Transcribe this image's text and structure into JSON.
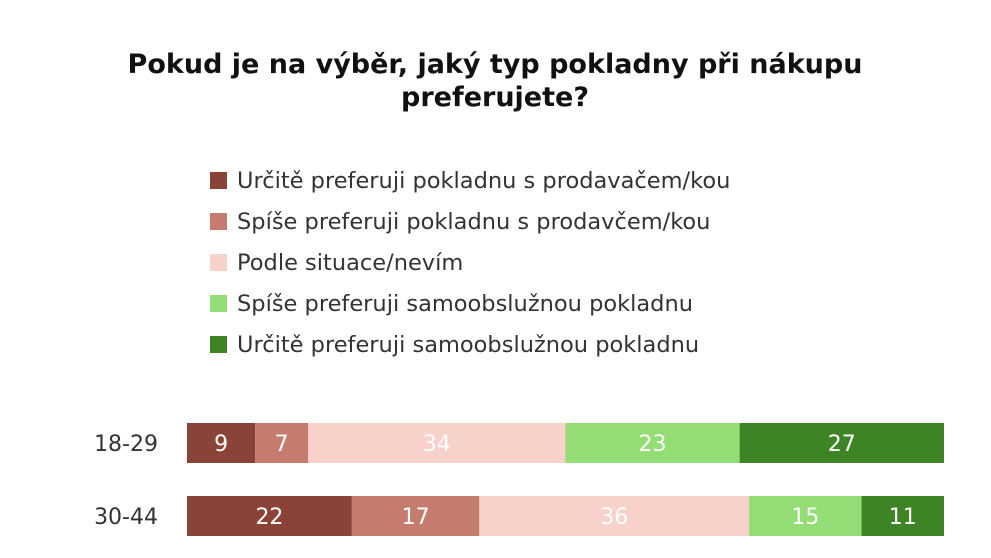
{
  "chart_data": {
    "type": "bar",
    "orientation": "horizontal",
    "stacked": true,
    "title": "Pokud je na výběr, jaký typ pokladny při nákupu preferujete?",
    "categories": [
      "18-29",
      "30-44"
    ],
    "series": [
      {
        "name": "Určitě preferuji pokladnu s prodavačem/kou",
        "color": "#8b4338",
        "values": [
          9,
          22
        ]
      },
      {
        "name": "Spíše preferuji pokladnu s prodavčem/kou",
        "color": "#c57b6e",
        "values": [
          7,
          17
        ]
      },
      {
        "name": "Podle situace/nevím",
        "color": "#f7d1ca",
        "values": [
          34,
          36
        ]
      },
      {
        "name": "Spíše preferuji samoobslužnou pokladnu",
        "color": "#94dc74",
        "values": [
          23,
          15
        ]
      },
      {
        "name": "Určitě preferuji samoobslužnou pokladnu",
        "color": "#3f8424",
        "values": [
          27,
          11
        ]
      }
    ],
    "legend_position": "top",
    "grid": false
  }
}
